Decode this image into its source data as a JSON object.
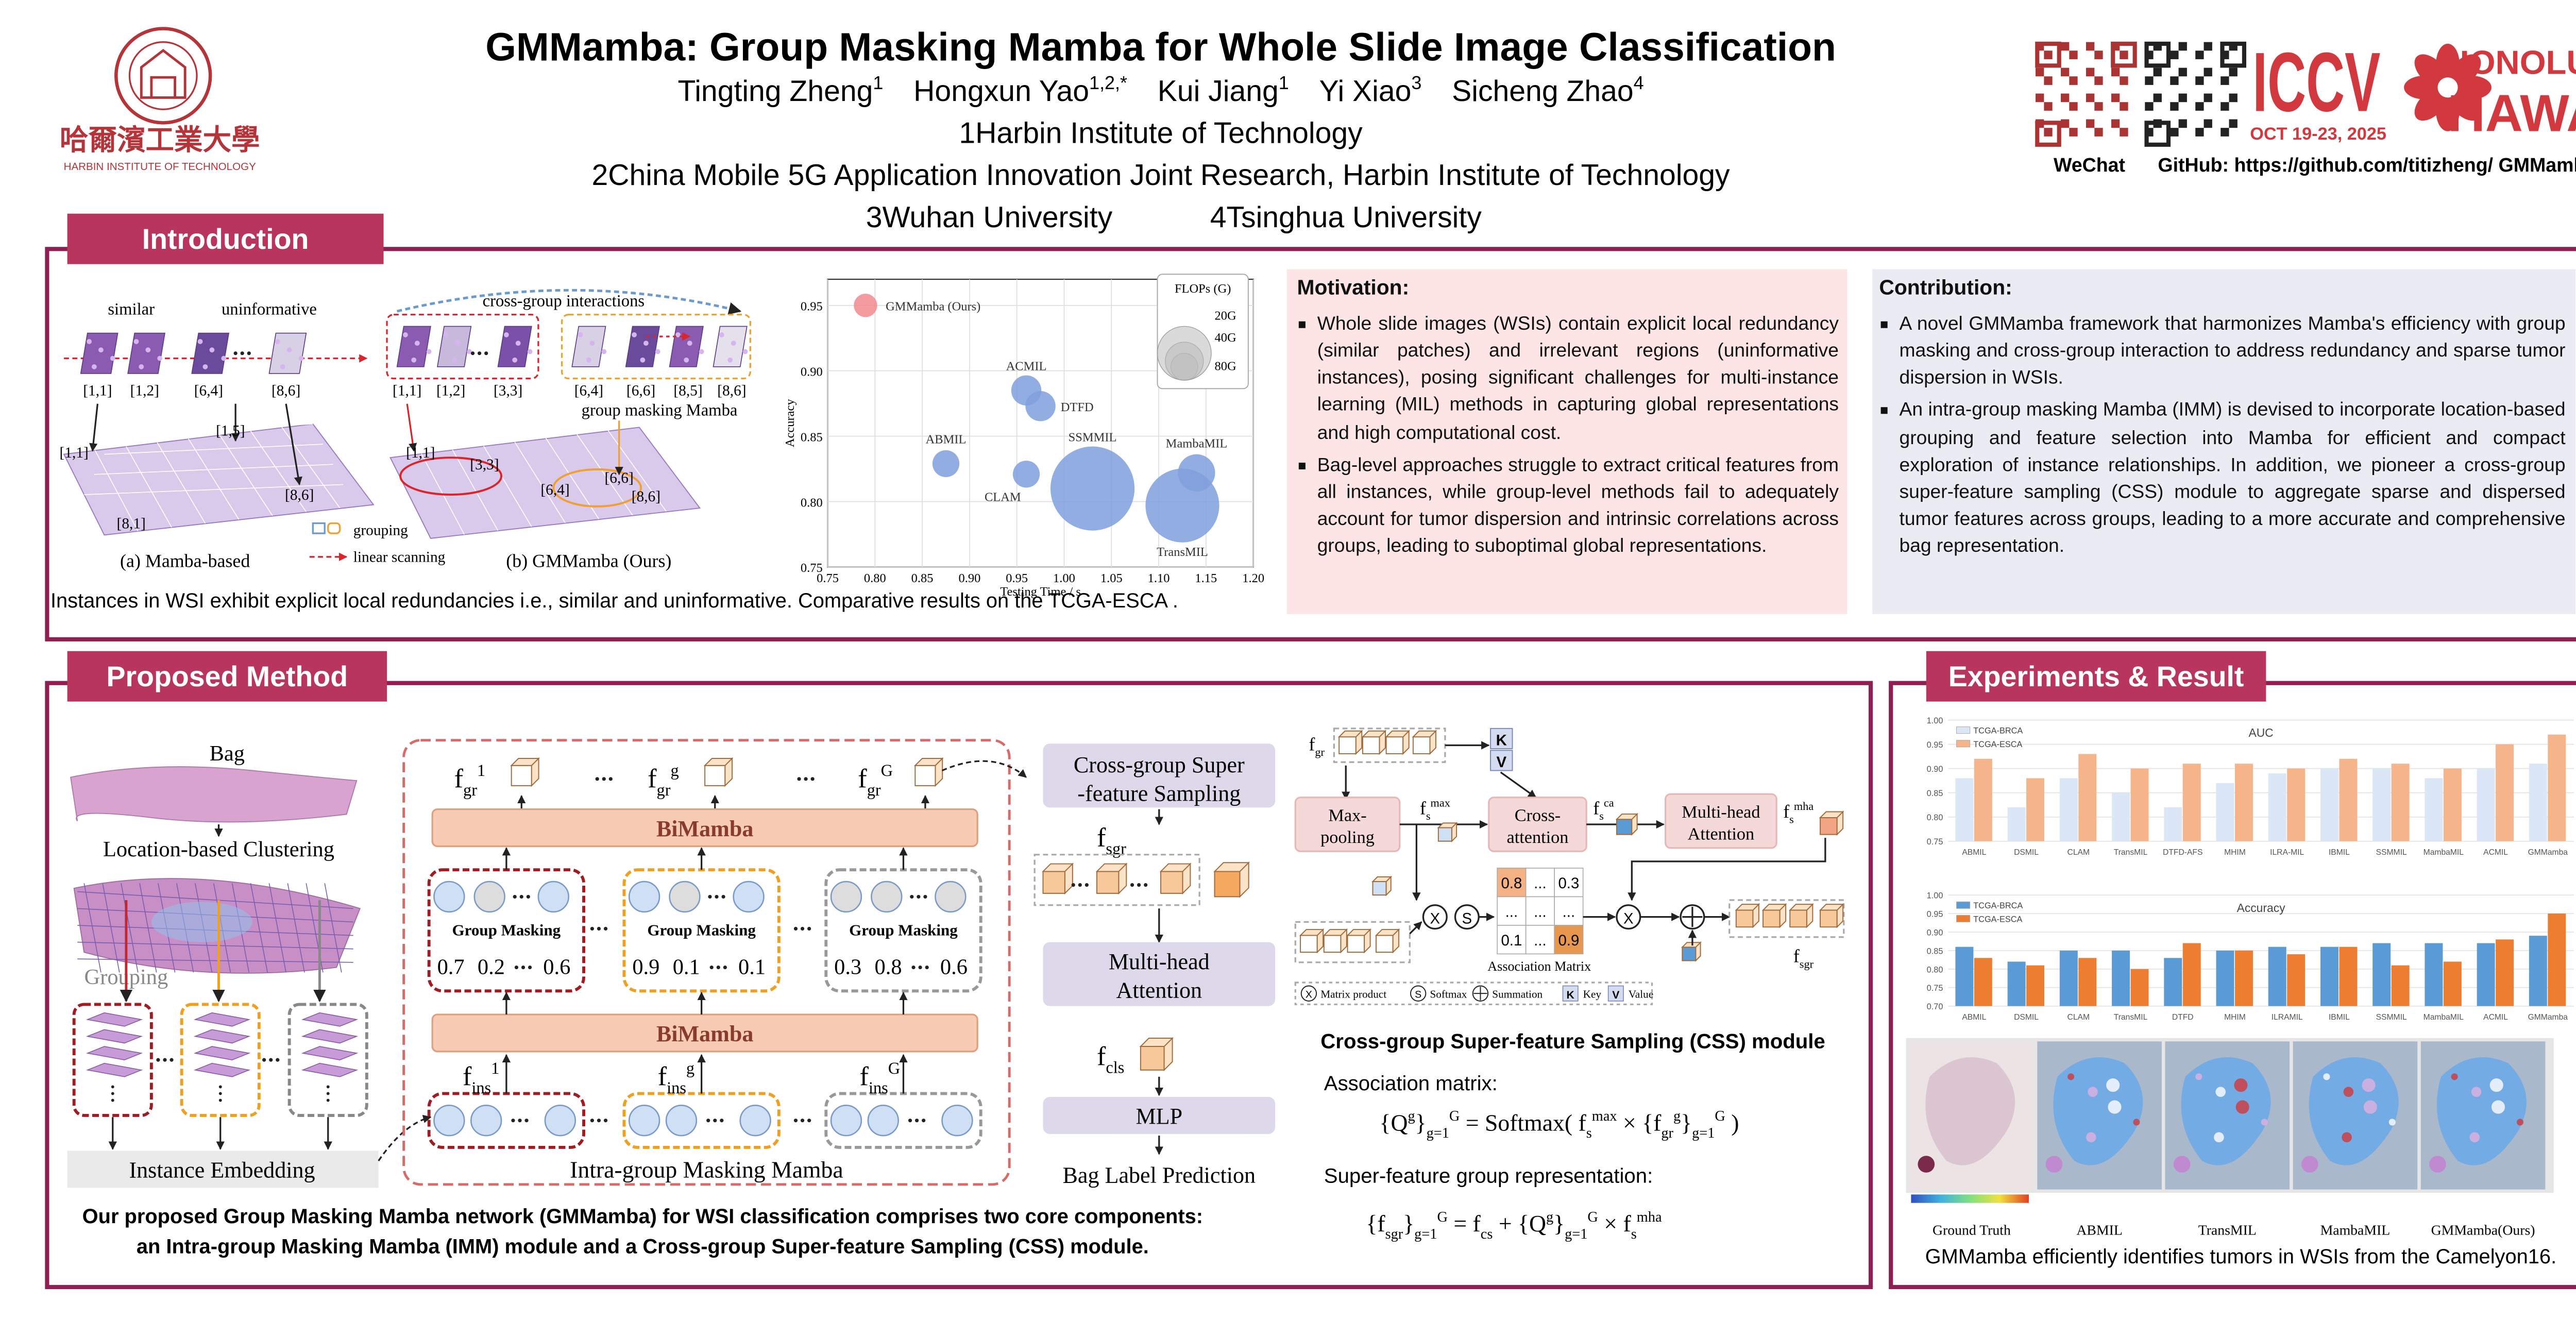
{
  "header": {
    "title": "GMMamba: Group Masking Mamba for Whole Slide Image Classification",
    "authors": [
      {
        "name": "Tingting Zheng",
        "sup": "1"
      },
      {
        "name": "Hongxun Yao",
        "sup": "1,2,*"
      },
      {
        "name": "Kui Jiang",
        "sup": "1"
      },
      {
        "name": "Yi Xiao",
        "sup": "3"
      },
      {
        "name": "Sicheng Zhao",
        "sup": "4"
      }
    ],
    "affiliations": [
      "1Harbin Institute of Technology",
      "2China Mobile 5G Application Innovation Joint Research, Harbin Institute of Technology",
      "3Wuhan University",
      "4Tsinghua University"
    ],
    "logo_text": "哈爾濱工業大學",
    "logo_sub": "HARBIN INSTITUTE OF TECHNOLOGY",
    "wechat": "WeChat",
    "github": "GitHub: https://github.com/titizheng/ GMMamba",
    "conference": "ICCV",
    "conference_date": "OCT 19-23, 2025",
    "place": [
      "HONOLULU",
      "HAWAII"
    ]
  },
  "introduction": {
    "heading": "Introduction",
    "fig_a": {
      "similar": "similar",
      "uninformative": "uninformative",
      "patch_labels": [
        "[1,1]",
        "[1,2]",
        "[6,4]",
        "[8,6]"
      ],
      "slide_labels": [
        "[1,5]",
        "[1,1]",
        "[8,1]",
        "[8,6]"
      ],
      "caption": "(a) Mamba-based"
    },
    "fig_b": {
      "interaction": "cross-group interactions",
      "masking": "group masking Mamba",
      "patch_labels": [
        "[1,1]",
        "[1,2]",
        "[3,3]",
        "[6,4]",
        "[6,6]",
        "[8,5]",
        "[8,6]"
      ],
      "slide_labels": [
        "[1,1]",
        "[3,3]",
        "[6,4]",
        "[6,6]",
        "[8,6]"
      ],
      "caption": "(b) GMMamba (Ours)"
    },
    "legend": {
      "grouping": "grouping",
      "scanning": "linear scanning"
    },
    "caption": "Instances in WSI exhibit explicit local redundancies i.e., similar and uninformative.  Comparative results on the TCGA-ESCA .",
    "motivation": {
      "heading": "Motivation:",
      "bullets": [
        "Whole slide images (WSIs) contain explicit local redundancy (similar patches) and irrelevant regions (uninformative instances), posing significant challenges for multi-instance learning (MIL) methods in capturing global representations and high computational cost.",
        "Bag-level approaches struggle to extract critical features from all instances, while group-level methods fail to adequately account for tumor dispersion and intrinsic correlations across groups, leading to suboptimal global representations."
      ]
    },
    "contribution": {
      "heading": "Contribution:",
      "bullets": [
        "A novel GMMamba framework that harmonizes Mamba's efficiency with group masking and cross-group interaction to address redundancy and sparse tumor dispersion in WSIs.",
        "An intra-group masking Mamba (IMM) is devised to incorporate location-based grouping and feature selection into Mamba for efficient and compact exploration of instance relationships. In addition, we pioneer a cross-group super-feature sampling (CSS) module to aggregate sparse and dispersed tumor features across groups, leading to a more accurate and comprehensive bag representation."
      ]
    }
  },
  "method": {
    "heading": "Proposed Method",
    "bag": "Bag",
    "clustering": "Location-based Clustering",
    "grouping": "Grouping",
    "embedding": "Instance Embedding",
    "bimamba": [
      "BiMamba",
      "BiMamba"
    ],
    "group_masking": [
      "Group Masking",
      "Group Masking",
      "Group Masking"
    ],
    "scores": [
      [
        "0.7",
        "0.2",
        "0.6"
      ],
      [
        "0.9",
        "0.1",
        "0.1"
      ],
      [
        "0.3",
        "0.8",
        "0.6"
      ]
    ],
    "imm": "Intra-group Masking Mamba",
    "f_gr": [
      [
        {
          "t": "f"
        },
        {
          "sub": "gr"
        },
        {
          "sup": "1"
        }
      ],
      [
        {
          "t": "f"
        },
        {
          "sub": "gr"
        },
        {
          "sup": "g"
        }
      ],
      [
        {
          "t": "f"
        },
        {
          "sub": "gr"
        },
        {
          "sup": "G"
        }
      ]
    ],
    "f_ins": [
      [
        {
          "t": "f"
        },
        {
          "sub": "ins"
        },
        {
          "sup": "1"
        }
      ],
      [
        {
          "t": "f"
        },
        {
          "sub": "ins"
        },
        {
          "sup": "g"
        }
      ],
      [
        {
          "t": "f"
        },
        {
          "sub": "ins"
        },
        {
          "sup": "G"
        }
      ]
    ],
    "css_box": [
      "Cross-group Super",
      "-feature Sampling"
    ],
    "f_sgr": [
      {
        "t": "f"
      },
      {
        "sub": "sgr"
      }
    ],
    "mha_box": [
      "Multi-head",
      "Attention"
    ],
    "f_cls": [
      {
        "t": "f"
      },
      {
        "sub": "cls"
      }
    ],
    "mlp": "MLP",
    "prediction": "Bag Label Prediction",
    "caption": [
      "Our proposed Group Masking Mamba network (GMMamba) for WSI classification comprises two core components:",
      "an Intra-group Masking Mamba (IMM) module and a Cross-group Super-feature Sampling (CSS) module."
    ],
    "css": {
      "f_gr": [
        {
          "t": "f"
        },
        {
          "sub": "gr"
        }
      ],
      "k": "K",
      "v": "V",
      "maxpool": [
        "Max-",
        "pooling"
      ],
      "f_max": [
        {
          "t": "f"
        },
        {
          "sub": "s"
        },
        {
          "sup": "max"
        }
      ],
      "cross": [
        "Cross-",
        "attention"
      ],
      "f_ca": [
        {
          "t": "f"
        },
        {
          "sub": "s"
        },
        {
          "sup": "ca"
        }
      ],
      "mha": [
        "Multi-head",
        "Attention"
      ],
      "f_mha": [
        {
          "t": "f"
        },
        {
          "sub": "s"
        },
        {
          "sup": "mha"
        }
      ],
      "x": "X",
      "s": "S",
      "matrix": [
        [
          "0.8",
          "...",
          "0.3"
        ],
        [
          "...",
          "...",
          "..."
        ],
        [
          "0.1",
          "...",
          "0.9"
        ]
      ],
      "matrix_label": "Association Matrix",
      "f_out": [
        {
          "t": "f"
        },
        {
          "sub": "sgr"
        }
      ],
      "legend": {
        "x": "X",
        "product": "Matrix product",
        "s": "S",
        "softmax": "Softmax",
        "summation": "Summation",
        "k": "K",
        "key": "Key",
        "v": "V",
        "value": "Value"
      },
      "title": "Cross-group Super-feature Sampling (CSS) module",
      "assoc_label": "Association matrix:",
      "assoc_formula": [
        {
          "t": "{Q"
        },
        {
          "sup": "g"
        },
        {
          "t": "}"
        },
        {
          "sub": "g=1"
        },
        {
          "sup": "G"
        },
        {
          "t": " = Softmax( f"
        },
        {
          "sub": "s"
        },
        {
          "sup": "max"
        },
        {
          "t": " × {f"
        },
        {
          "sub": "gr"
        },
        {
          "sup": "g"
        },
        {
          "t": "}"
        },
        {
          "sub": "g=1"
        },
        {
          "sup": "G"
        },
        {
          "t": " )"
        }
      ],
      "super_label": "Super-feature group representation:",
      "super_formula": [
        {
          "t": "{f"
        },
        {
          "sub": "sgr"
        },
        {
          "t": "}"
        },
        {
          "sub": "g=1"
        },
        {
          "sup": "G"
        },
        {
          "t": " = f"
        },
        {
          "sub": "cs"
        },
        {
          "t": " + {Q"
        },
        {
          "sup": "g"
        },
        {
          "t": "}"
        },
        {
          "sub": "g=1"
        },
        {
          "sup": "G"
        },
        {
          "t": " × f"
        },
        {
          "sub": "s"
        },
        {
          "sup": "mha"
        }
      ]
    }
  },
  "experiments": {
    "heading": "Experiments & Result",
    "maps": [
      "Ground Truth",
      "ABMIL",
      "TransMIL",
      "MambaMIL",
      "GMMamba(Ours)"
    ],
    "caption": "GMMamba efficiently identifies tumors in WSIs from the Camelyon16."
  },
  "chart_data": [
    {
      "type": "scatter",
      "xlabel": "Testing Time / s",
      "ylabel": "Accuracy",
      "point_labels": [
        "GMMamba (Ours)",
        "ABMIL",
        "ACMIL",
        "DTFD",
        "CLAM",
        "SSMMIL",
        "TransMIL",
        "MambaMIL"
      ],
      "x": [
        0.79,
        0.875,
        0.96,
        0.975,
        0.96,
        1.03,
        1.125,
        1.14
      ],
      "values": [
        0.95,
        0.829,
        0.885,
        0.873,
        0.821,
        0.81,
        0.797,
        0.822
      ],
      "sizes": [
        15,
        20,
        25,
        25,
        20,
        195,
        150,
        38
      ],
      "point_colors": [
        "#f2898f",
        "#7f9fdc",
        "#7f9fdc",
        "#7f9fdc",
        "#7f9fdc",
        "#7f9fdc",
        "#7f9fdc",
        "#7f9fdc"
      ],
      "xlim": [
        0.75,
        1.2
      ],
      "xticks": [
        0.75,
        {
          "value": 0.8,
          "label": "0.80"
        },
        0.85,
        {
          "value": 0.9,
          "label": "0.90"
        },
        0.95,
        {
          "value": 1.0,
          "label": "1.00"
        },
        1.05,
        {
          "value": 1.1,
          "label": "1.10"
        },
        1.15,
        {
          "value": 1.2,
          "label": "1.20"
        }
      ],
      "ylim": [
        0.75,
        0.97
      ],
      "yticks": [
        0.75,
        {
          "value": 0.8,
          "label": "0.80"
        },
        0.85,
        {
          "value": 0.9,
          "label": "0.90"
        },
        0.95
      ],
      "grid": true,
      "size_legend_title": "FLOPs (G)",
      "size_legend": [
        {
          "value": 20,
          "label": "20G"
        },
        {
          "value": 40,
          "label": "40G"
        },
        {
          "value": 80,
          "label": "80G"
        }
      ]
    },
    {
      "type": "bar",
      "title": "AUC",
      "categories": [
        "ABMIL",
        "DSMIL",
        "CLAM",
        "TransMIL",
        "DTFD-AFS",
        "MHIM",
        "ILRA-MIL",
        "IBMIL",
        "SSMMIL",
        "MambaMIL",
        "ACMIL",
        "GMMamba"
      ],
      "series": [
        {
          "name": "TCGA-BRCA",
          "color": "#dbe6f6",
          "values": [
            0.88,
            0.82,
            0.88,
            0.85,
            0.82,
            0.87,
            0.89,
            0.9,
            0.9,
            0.88,
            0.9,
            0.91
          ]
        },
        {
          "name": "TCGA-ESCA",
          "color": "#f6b48a",
          "values": [
            0.92,
            0.88,
            0.93,
            0.9,
            0.91,
            0.91,
            0.9,
            0.92,
            0.91,
            0.9,
            0.95,
            0.97
          ]
        }
      ],
      "ylim": [
        0.75,
        1.0
      ],
      "yticks": [
        0.75,
        {
          "value": 0.8,
          "label": "0.80"
        },
        0.85,
        {
          "value": 0.9,
          "label": "0.90"
        },
        0.95,
        {
          "value": 1.0,
          "label": "1.00"
        }
      ],
      "grid": true,
      "legend": "upper-left"
    },
    {
      "type": "bar",
      "title": "Accuracy",
      "categories": [
        "ABMIL",
        "DSMIL",
        "CLAM",
        "TransMIL",
        "DTFD",
        "MHIM",
        "ILRAMIL",
        "IBMIL",
        "SSMMIL",
        "MambaMIL",
        "ACMIL",
        "GMMamba"
      ],
      "series": [
        {
          "name": "TCGA-BRCA",
          "color": "#5b9bd5",
          "values": [
            0.86,
            0.82,
            0.85,
            0.85,
            0.83,
            0.85,
            0.86,
            0.86,
            0.87,
            0.87,
            0.87,
            0.89
          ]
        },
        {
          "name": "TCGA-ESCA",
          "color": "#ed7d31",
          "values": [
            0.83,
            0.81,
            0.83,
            0.8,
            0.87,
            0.85,
            0.84,
            0.86,
            0.81,
            0.82,
            0.88,
            0.95
          ]
        }
      ],
      "ylim": [
        0.7,
        1.0
      ],
      "yticks": [
        {
          "value": 0.7,
          "label": "0.70"
        },
        0.75,
        {
          "value": 0.8,
          "label": "0.80"
        },
        0.85,
        {
          "value": 0.9,
          "label": "0.90"
        },
        0.95,
        {
          "value": 1.0,
          "label": "1.00"
        }
      ],
      "grid": true,
      "legend": "upper-left"
    }
  ]
}
